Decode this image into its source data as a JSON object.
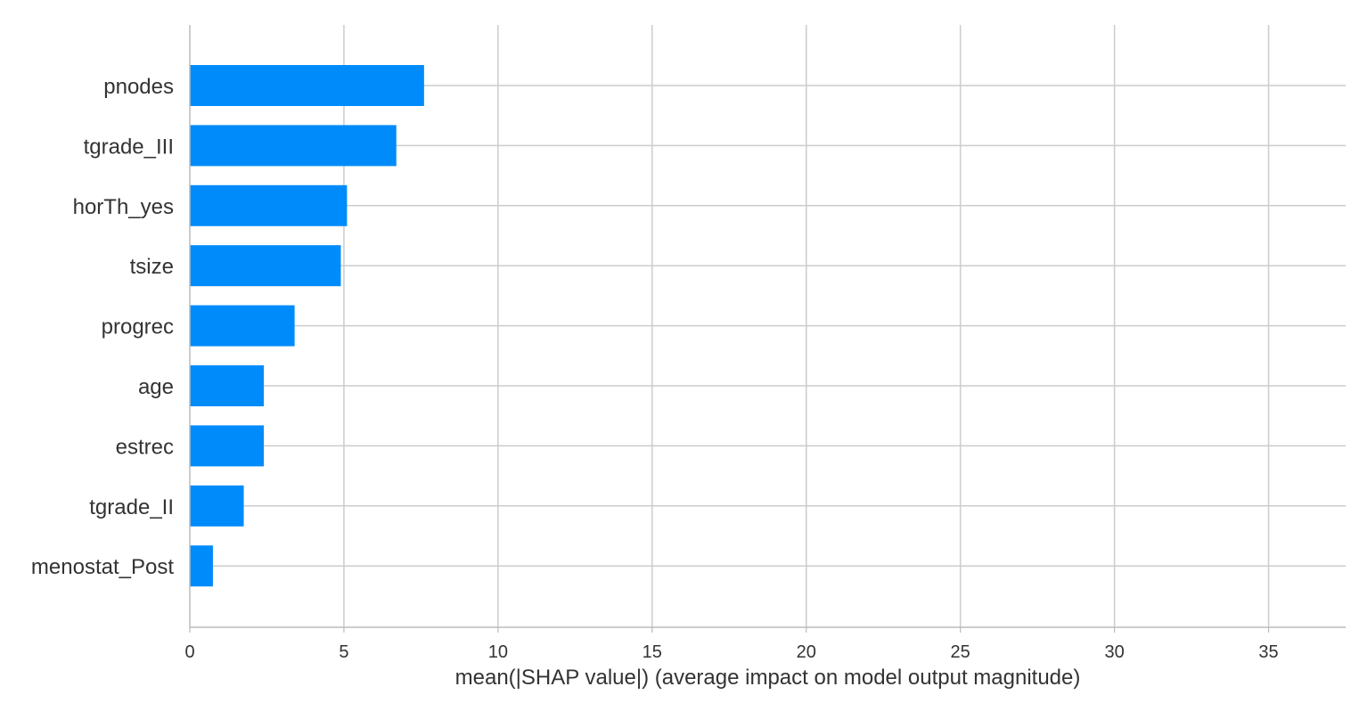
{
  "chart_data": {
    "type": "bar",
    "orientation": "horizontal",
    "title": "",
    "xlabel": "mean(|SHAP value|) (average impact on model output magnitude)",
    "ylabel": "",
    "xlim": [
      0,
      37.5
    ],
    "xticks": [
      0,
      5,
      10,
      15,
      20,
      25,
      30,
      35
    ],
    "grid": true,
    "bar_color": "#008bfb",
    "categories": [
      "pnodes",
      "tgrade_III",
      "horTh_yes",
      "tsize",
      "progrec",
      "age",
      "estrec",
      "tgrade_II",
      "menostat_Post"
    ],
    "values": [
      7.6,
      6.7,
      5.1,
      4.9,
      3.4,
      2.4,
      2.4,
      1.75,
      0.75
    ]
  }
}
